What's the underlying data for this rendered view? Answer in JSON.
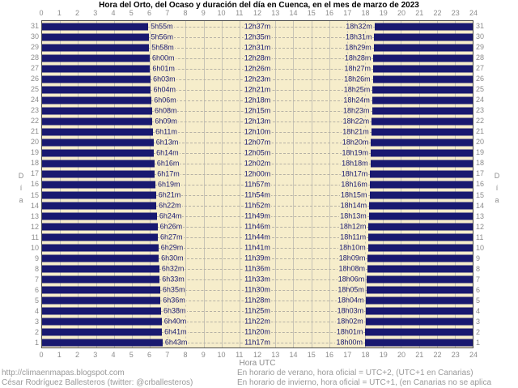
{
  "title": "Hora del Orto, del Ocaso y duración del día en Cuenca, en el mes de marzo de 2023",
  "axis": {
    "x_label_bottom": "Hora UTC",
    "y_label_left": "Día",
    "y_label_right": "Día"
  },
  "footer": {
    "left_line1": "http://climaenmapas.blogspot.com",
    "left_line2": "César Rodríguez Ballesteros (twitter: @crballesteros)",
    "right_line1": "En horario de verano, hora oficial = UTC+2, (UTC+1 en Canarias)",
    "right_line2": "En horario de invierno, hora oficial = UTC+1, (en Canarias no se aplica corrección)"
  },
  "colors": {
    "night_bar": "#191970",
    "plot_background": "#f6edcb",
    "gridline": "#c7c3b5",
    "axis_text": "#8c8c8c",
    "time_label_text": "#191970",
    "footer_text": "#9a9a9a"
  },
  "chart_data": {
    "type": "bar",
    "title": "Hora del Orto, del Ocaso y duración del día en Cuenca, en el mes de marzo de 2023",
    "xlabel": "Hora UTC",
    "ylabel": "Día",
    "xlim": [
      0,
      24
    ],
    "x_ticks": [
      0,
      1,
      2,
      3,
      4,
      5,
      6,
      7,
      8,
      9,
      10,
      11,
      12,
      13,
      14,
      15,
      16,
      17,
      18,
      19,
      20,
      21,
      22,
      23,
      24
    ],
    "grid": true,
    "legend_position": "none",
    "days": [
      31,
      30,
      29,
      28,
      27,
      26,
      25,
      24,
      23,
      22,
      21,
      20,
      19,
      18,
      17,
      16,
      15,
      14,
      13,
      12,
      11,
      10,
      9,
      8,
      7,
      6,
      5,
      4,
      3,
      2,
      1
    ],
    "series": [
      {
        "name": "Hora del Orto (UTC)",
        "values": [
          "5h55m",
          "5h56m",
          "5h58m",
          "6h00m",
          "6h01m",
          "6h03m",
          "6h04m",
          "6h06m",
          "6h08m",
          "6h09m",
          "6h11m",
          "6h13m",
          "6h14m",
          "6h16m",
          "6h17m",
          "6h19m",
          "6h21m",
          "6h22m",
          "6h24m",
          "6h26m",
          "6h27m",
          "6h29m",
          "6h30m",
          "6h32m",
          "6h33m",
          "6h35m",
          "6h36m",
          "6h38m",
          "6h40m",
          "6h41m",
          "6h43m"
        ]
      },
      {
        "name": "Duración del día",
        "values": [
          "12h37m",
          "12h35m",
          "12h31m",
          "12h28m",
          "12h26m",
          "12h23m",
          "12h21m",
          "12h18m",
          "12h15m",
          "12h13m",
          "12h10m",
          "12h07m",
          "12h05m",
          "12h02m",
          "12h00m",
          "11h57m",
          "11h54m",
          "11h52m",
          "11h49m",
          "11h46m",
          "11h44m",
          "11h41m",
          "11h39m",
          "11h36m",
          "11h33m",
          "11h30m",
          "11h28m",
          "11h25m",
          "11h22m",
          "11h20m",
          "11h17m"
        ]
      },
      {
        "name": "Hora del Ocaso (UTC)",
        "values": [
          "18h32m",
          "18h31m",
          "18h29m",
          "18h28m",
          "18h27m",
          "18h26m",
          "18h25m",
          "18h24m",
          "18h23m",
          "18h22m",
          "18h21m",
          "18h20m",
          "18h19m",
          "18h18m",
          "18h17m",
          "18h16m",
          "18h15m",
          "18h14m",
          "18h13m",
          "18h12m",
          "18h11m",
          "18h10m",
          "18h09m",
          "18h08m",
          "18h06m",
          "18h05m",
          "18h04m",
          "18h03m",
          "18h02m",
          "18h01m",
          "18h00m"
        ]
      }
    ]
  }
}
